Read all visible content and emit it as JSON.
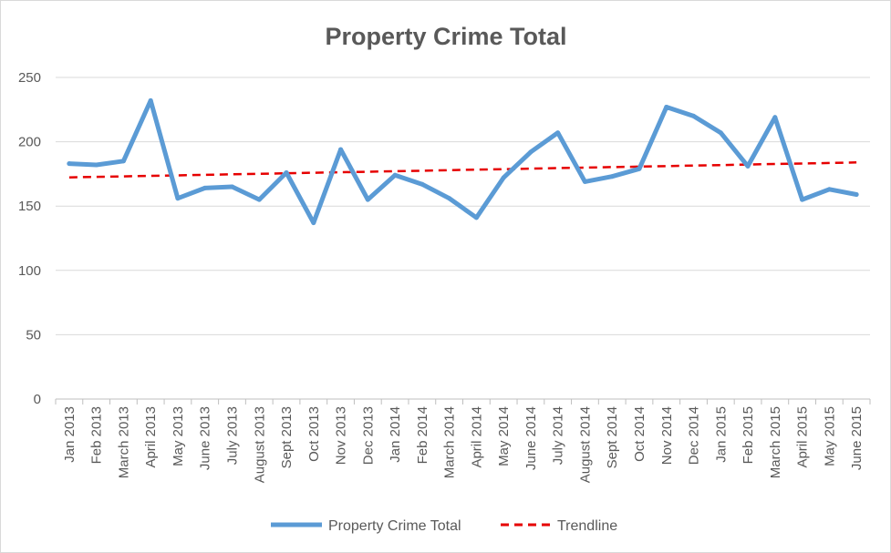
{
  "chart_data": {
    "type": "line",
    "title": "Property Crime Total",
    "xlabel": "",
    "ylabel": "",
    "ylim": [
      0,
      250
    ],
    "yticks": [
      0,
      50,
      100,
      150,
      200,
      250
    ],
    "grid": true,
    "legend_position": "bottom",
    "categories": [
      "Jan 2013",
      "Feb 2013",
      "March 2013",
      "April 2013",
      "May 2013",
      "June 2013",
      "July 2013",
      "August 2013",
      "Sept 2013",
      "Oct 2013",
      "Nov 2013",
      "Dec 2013",
      "Jan 2014",
      "Feb 2014",
      "March 2014",
      "April 2014",
      "May 2014",
      "June 2014",
      "July 2014",
      "August 2014",
      "Sept 2014",
      "Oct 2014",
      "Nov 2014",
      "Dec 2014",
      "Jan 2015",
      "Feb 2015",
      "March 2015",
      "April 2015",
      "May 2015",
      "June 2015"
    ],
    "series": [
      {
        "name": "Property Crime Total",
        "color": "#5b9bd5",
        "style": "solid",
        "values": [
          183,
          182,
          185,
          232,
          156,
          164,
          165,
          155,
          176,
          137,
          194,
          155,
          174,
          167,
          156,
          141,
          172,
          192,
          207,
          169,
          173,
          179,
          227,
          220,
          207,
          181,
          219,
          155,
          163,
          159
        ]
      },
      {
        "name": "Trendline",
        "color": "#e60000",
        "style": "dashed",
        "values": [
          172.3,
          172.7,
          173.1,
          173.5,
          173.9,
          174.3,
          174.7,
          175.1,
          175.5,
          175.9,
          176.3,
          176.7,
          177.1,
          177.5,
          177.9,
          178.3,
          178.7,
          179.1,
          179.5,
          179.9,
          180.3,
          180.7,
          181.1,
          181.5,
          181.9,
          182.3,
          182.7,
          183.1,
          183.5,
          183.9
        ]
      }
    ]
  }
}
